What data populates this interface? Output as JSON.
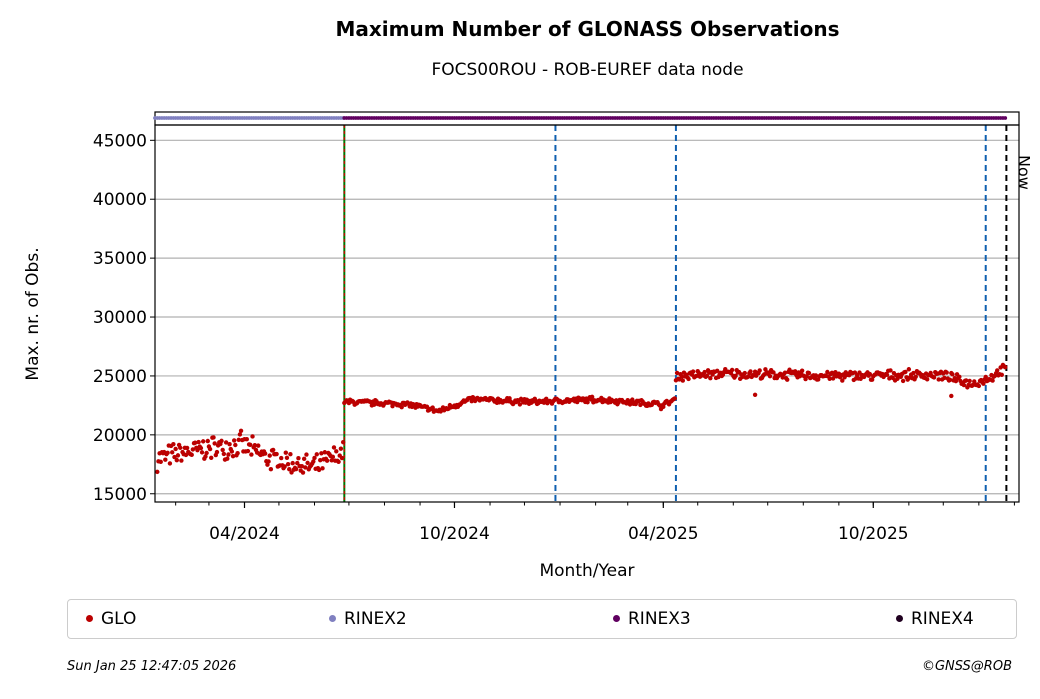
{
  "chart_data": {
    "type": "scatter",
    "title": "Maximum Number of GLONASS Observations",
    "subtitle": "FOCS00ROU - ROB-EUREF data node",
    "xlabel": "Month/Year",
    "ylabel": "Max. nr. of Obs.",
    "xlim": [
      "2024-01-14",
      "2026-02-05"
    ],
    "ylim": [
      14300,
      46300
    ],
    "yticks": [
      15000,
      20000,
      25000,
      30000,
      35000,
      40000,
      45000
    ],
    "xticks": [
      {
        "date": "2024-04-01",
        "label": "04/2024"
      },
      {
        "date": "2024-10-01",
        "label": "10/2024"
      },
      {
        "date": "2025-04-01",
        "label": "04/2025"
      },
      {
        "date": "2025-10-01",
        "label": "10/2025"
      }
    ],
    "grid": "horizontal",
    "legend_position": "bottom",
    "series": [
      {
        "name": "GLO",
        "color": "#bb0000",
        "segments": [
          {
            "start": "2024-01-16",
            "end": "2024-06-26",
            "profile": [
              [
                0,
                18000
              ],
              [
                0.25,
                18800
              ],
              [
                0.45,
                19200
              ],
              [
                0.6,
                18000
              ],
              [
                0.85,
                17200
              ],
              [
                1.0,
                18500
              ]
            ],
            "spread": 1200
          },
          {
            "start": "2024-06-27",
            "end": "2025-03-29",
            "profile": [
              [
                0,
                22800
              ],
              [
                0.2,
                22600
              ],
              [
                0.3,
                22000
              ],
              [
                0.4,
                23000
              ],
              [
                0.6,
                22800
              ],
              [
                0.8,
                23000
              ],
              [
                0.9,
                22800
              ],
              [
                1.0,
                22600
              ]
            ],
            "spread": 300
          },
          {
            "start": "2025-03-30",
            "end": "2025-04-11",
            "profile": [
              [
                0,
                22400
              ],
              [
                1.0,
                23000
              ]
            ],
            "spread": 300
          },
          {
            "start": "2025-04-12",
            "end": "2026-01-24",
            "profile": [
              [
                0,
                25000
              ],
              [
                0.15,
                25200
              ],
              [
                0.5,
                25000
              ],
              [
                0.8,
                25100
              ],
              [
                0.9,
                24300
              ],
              [
                0.95,
                24800
              ],
              [
                1.0,
                25600
              ]
            ],
            "spread": 500
          }
        ],
        "outliers": [
          [
            "2025-06-20",
            23400
          ],
          [
            "2025-12-08",
            23300
          ]
        ]
      },
      {
        "name": "RINEX2",
        "color": "#8080c0",
        "marker_y": 46800,
        "start": "2024-01-14",
        "end": "2024-06-26"
      },
      {
        "name": "RINEX3",
        "color": "#600060",
        "marker_y": 46800,
        "start": "2024-06-27",
        "end": "2026-01-24"
      },
      {
        "name": "RINEX4",
        "color": "#200020"
      }
    ],
    "vlines": [
      {
        "date": "2024-06-27",
        "color": "#007700",
        "overlay_color": "#cc0000",
        "style": "dotted"
      },
      {
        "date": "2024-12-28",
        "color": "#1060b0",
        "style": "dashed"
      },
      {
        "date": "2025-04-12",
        "color": "#1060b0",
        "style": "dashed"
      },
      {
        "date": "2026-01-07",
        "color": "#1060b0",
        "style": "dashed"
      },
      {
        "date": "2026-01-25",
        "color": "#000000",
        "style": "dashed",
        "label": "Now"
      }
    ]
  },
  "footer": {
    "timestamp": "Sun Jan 25 12:47:05 2026",
    "copyright": "©GNSS@ROB"
  }
}
